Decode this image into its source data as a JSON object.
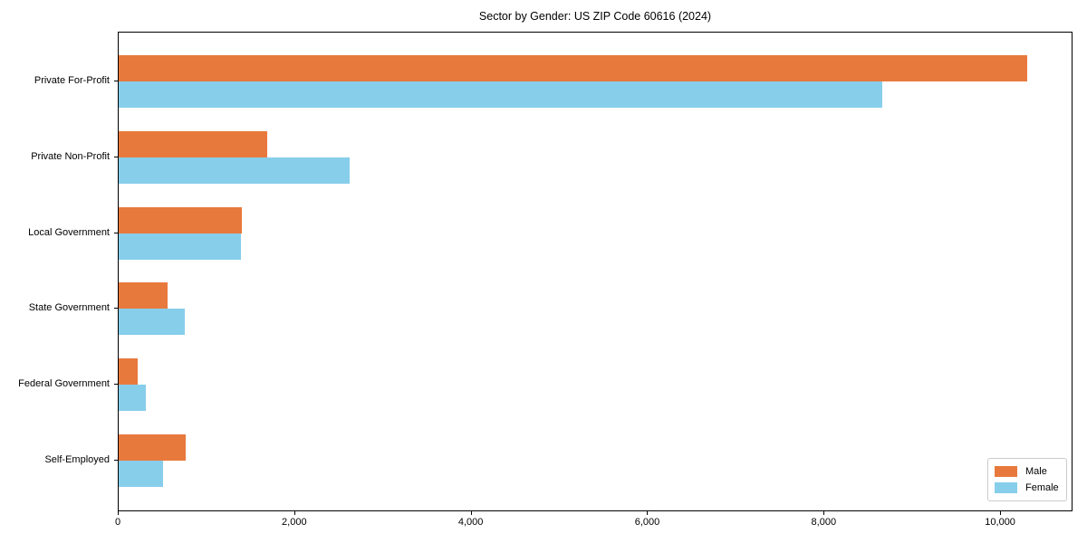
{
  "chart_data": {
    "type": "bar",
    "orientation": "horizontal",
    "title": "Sector by Gender: US ZIP Code 60616 (2024)",
    "categories": [
      "Private For-Profit",
      "Private Non-Profit",
      "Local Government",
      "State Government",
      "Federal Government",
      "Self-Employed"
    ],
    "series": [
      {
        "name": "Male",
        "color": "#e8793d",
        "values": [
          10300,
          1680,
          1400,
          550,
          220,
          760
        ]
      },
      {
        "name": "Female",
        "color": "#87ceeb",
        "values": [
          8650,
          2620,
          1390,
          750,
          310,
          500
        ]
      }
    ],
    "xlabel": "",
    "ylabel": "",
    "xlim": [
      0,
      10820
    ],
    "xticks": [
      0,
      2000,
      4000,
      6000,
      8000,
      10000
    ],
    "xtick_labels": [
      "0",
      "2,000",
      "4,000",
      "6,000",
      "8,000",
      "10,000"
    ],
    "grid": false,
    "legend": {
      "position": "lower-right",
      "entries": [
        "Male",
        "Female"
      ]
    },
    "colors": {
      "axis": "#000000",
      "text": "#000000",
      "legend_border": "#cccccc",
      "background": "#ffffff"
    }
  }
}
